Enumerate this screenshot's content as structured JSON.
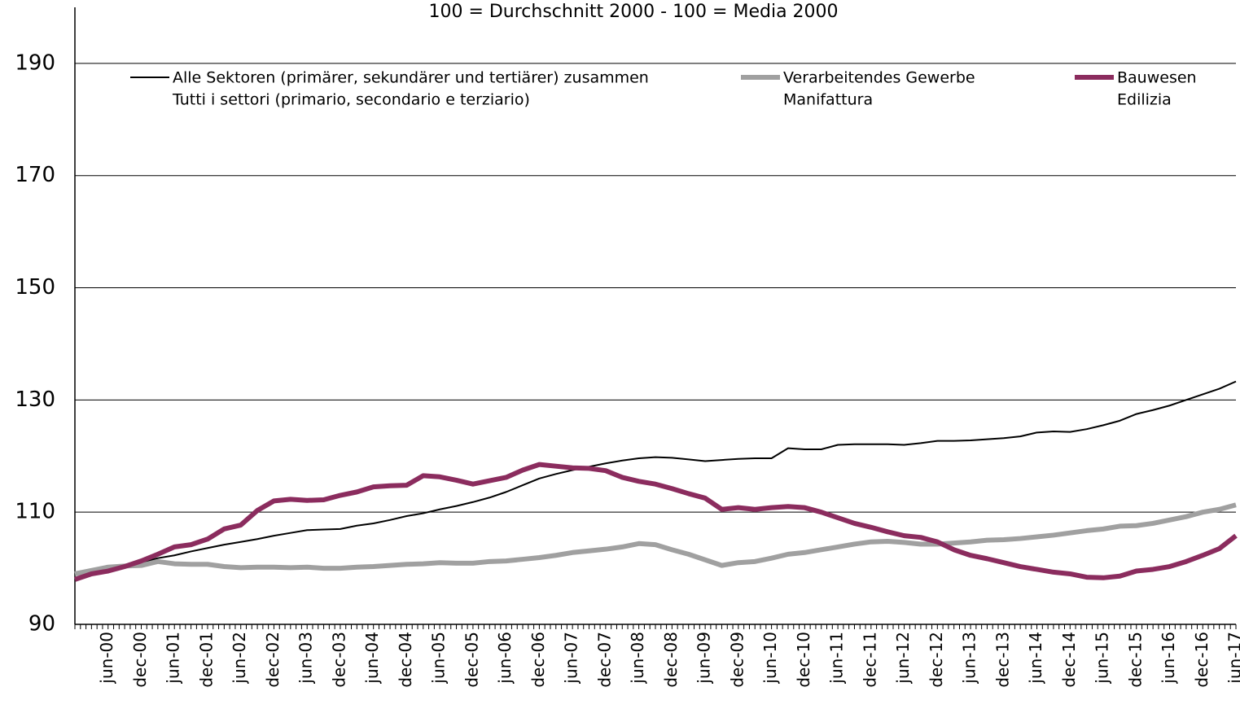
{
  "chart_data": {
    "type": "line",
    "title": "100 = Durchschnitt 2000 - 100 = Media 2000",
    "categories": [
      null,
      null,
      "jun-00",
      null,
      "dec-00",
      null,
      "jun-01",
      null,
      "dec-01",
      null,
      "jun-02",
      null,
      "dec-02",
      null,
      "jun-03",
      null,
      "dec-03",
      null,
      "jun-04",
      null,
      "dec-04",
      null,
      "jun-05",
      null,
      "dec-05",
      null,
      "jun-06",
      null,
      "dec-06",
      null,
      "jun-07",
      null,
      "dec-07",
      null,
      "jun-08",
      null,
      "dec-08",
      null,
      "jun-09",
      null,
      "dec-09",
      null,
      "jun-10",
      null,
      "dec-10",
      null,
      "jun-11",
      null,
      "dec-11",
      null,
      "jun-12",
      null,
      "dec-12",
      null,
      "jun-13",
      null,
      "dec-13",
      null,
      "jun-14",
      null,
      "dec-14",
      null,
      "jun-15",
      null,
      "dec-15",
      null,
      "jun-16",
      null,
      "dec-16",
      null,
      "jun-17"
    ],
    "series": [
      {
        "name": [
          "Alle Sektoren (primärer, sekundärer und tertiärer) zusammen",
          "Tutti i settori (primario, secondario e terziario)"
        ],
        "color": "#000000",
        "width": 2,
        "values": [
          98,
          98.8,
          99.6,
          100.3,
          101,
          101.8,
          102.3,
          103,
          103.6,
          104.2,
          104.7,
          105.2,
          105.8,
          106.3,
          106.8,
          106.9,
          107,
          107.6,
          108,
          108.6,
          109.3,
          109.8,
          110.5,
          111.1,
          111.8,
          112.6,
          113.6,
          114.8,
          116,
          116.8,
          117.5,
          118.1,
          118.7,
          119.2,
          119.6,
          119.8,
          119.7,
          119.4,
          119.1,
          119.3,
          119.5,
          119.6,
          119.6,
          121.4,
          121.2,
          121.2,
          122,
          122.1,
          122.1,
          122.1,
          122,
          122.3,
          122.7,
          122.7,
          122.8,
          123,
          123.2,
          123.5,
          124.2,
          124.4,
          124.3,
          124.8,
          125.5,
          126.3,
          127.5,
          128.2,
          129,
          130,
          131,
          132,
          133.3
        ]
      },
      {
        "name": [
          "Verarbeitendes Gewerbe",
          "Manifattura"
        ],
        "color": "#a0a0a0",
        "width": 6,
        "values": [
          99,
          99.6,
          100.2,
          100.4,
          100.5,
          101.2,
          100.8,
          100.7,
          100.7,
          100.3,
          100.1,
          100.2,
          100.2,
          100.1,
          100.2,
          100,
          100,
          100.2,
          100.3,
          100.5,
          100.7,
          100.8,
          101,
          100.9,
          100.9,
          101.2,
          101.3,
          101.6,
          101.9,
          102.3,
          102.8,
          103.1,
          103.4,
          103.8,
          104.4,
          104.2,
          103.3,
          102.5,
          101.5,
          100.5,
          101,
          101.2,
          101.8,
          102.5,
          102.8,
          103.3,
          103.8,
          104.3,
          104.7,
          104.8,
          104.6,
          104.3,
          104.3,
          104.5,
          104.7,
          105,
          105.1,
          105.3,
          105.6,
          105.9,
          106.3,
          106.7,
          107,
          107.5,
          107.6,
          108,
          108.6,
          109.2,
          110,
          110.5,
          111.3
        ]
      },
      {
        "name": [
          "Bauwesen",
          "Edilizia"
        ],
        "color": "#8b2c5e",
        "width": 6,
        "values": [
          98,
          99,
          99.5,
          100.3,
          101.3,
          102.5,
          103.8,
          104.2,
          105.2,
          107,
          107.7,
          110.3,
          112,
          112.3,
          112.1,
          112.2,
          113,
          113.6,
          114.5,
          114.7,
          114.8,
          116.5,
          116.3,
          115.7,
          115,
          115.6,
          116.2,
          117.5,
          118.5,
          118.2,
          117.9,
          117.8,
          117.4,
          116.2,
          115.5,
          115,
          114.2,
          113.3,
          112.5,
          110.5,
          110.8,
          110.5,
          110.8,
          111,
          110.8,
          110,
          109,
          108,
          107.3,
          106.5,
          105.8,
          105.5,
          104.7,
          103.3,
          102.3,
          101.7,
          101,
          100.3,
          99.8,
          99.3,
          99,
          98.4,
          98.3,
          98.6,
          99.5,
          99.8,
          100.3,
          101.2,
          102.3,
          103.5,
          105.8
        ]
      }
    ],
    "ylim": [
      90,
      200
    ],
    "yticks": [
      90,
      110,
      130,
      150,
      170,
      190
    ],
    "grid": true
  }
}
